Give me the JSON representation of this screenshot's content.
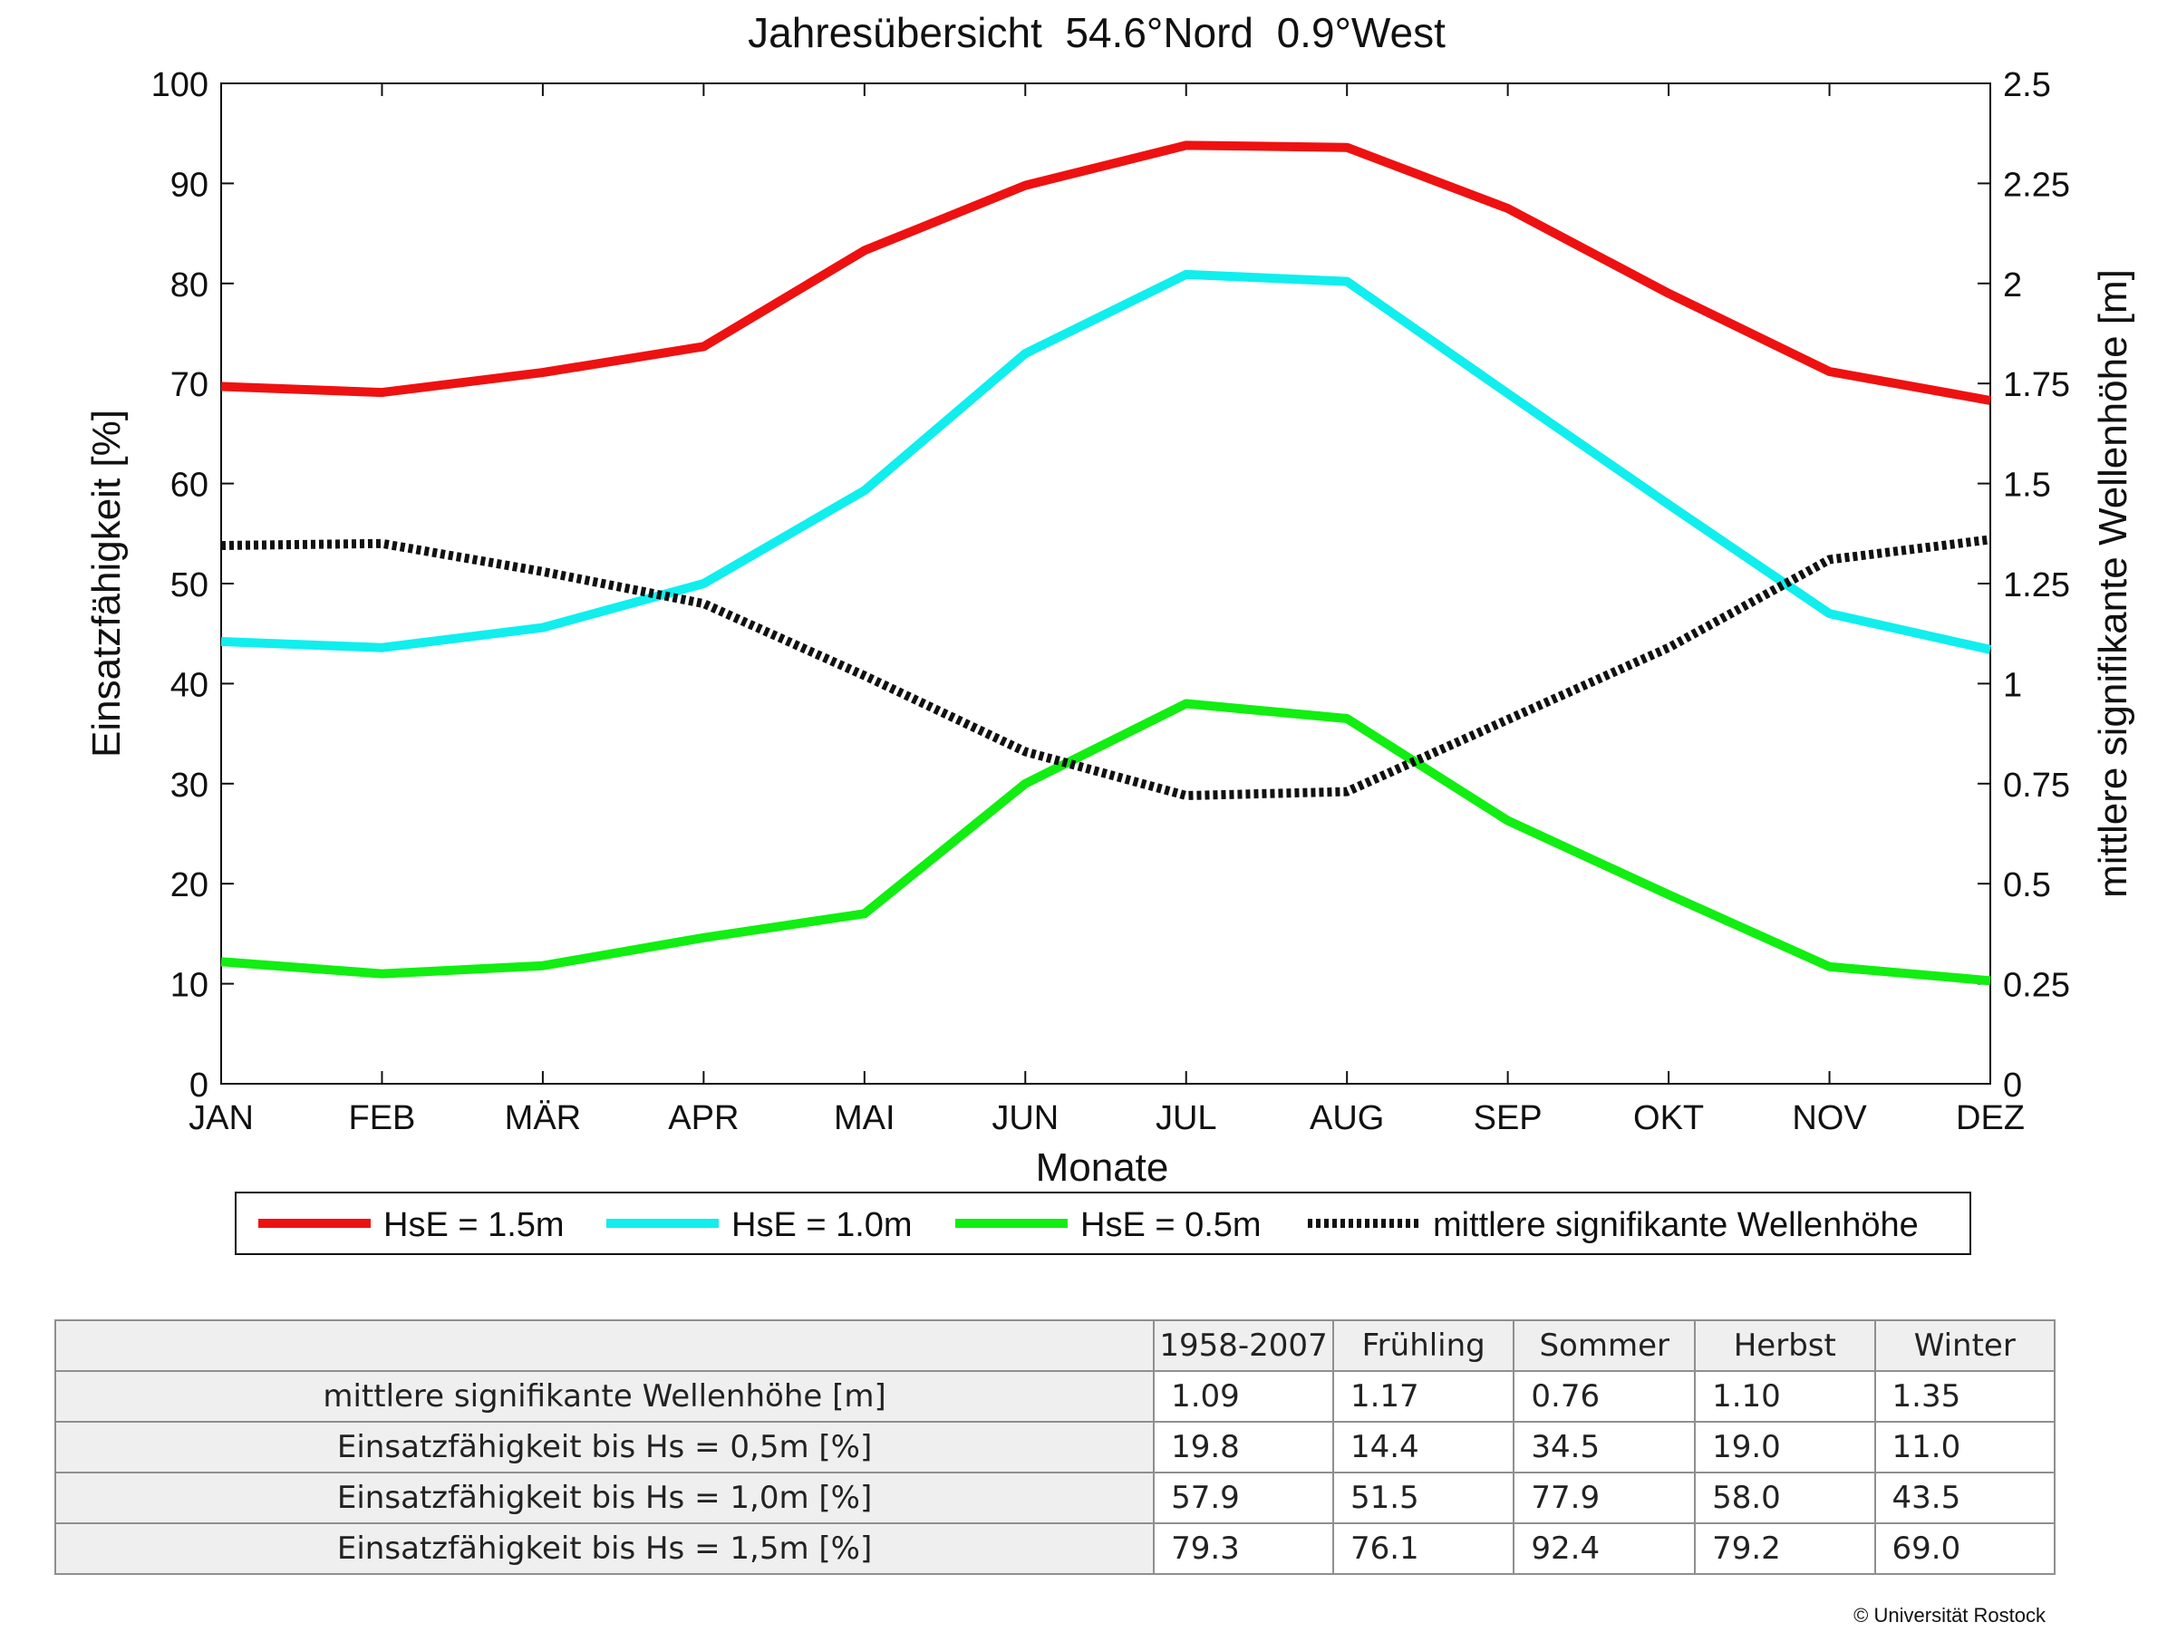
{
  "chart_data": {
    "type": "line",
    "title": "Jahresübersicht  54.6°Nord  0.9°West",
    "xlabel": "Monate",
    "ylabel": "Einsatzfähigkeit [%]",
    "ylabel_right": "mittlere signifikante Wellenhöhe [m]",
    "categories": [
      "JAN",
      "FEB",
      "MÄR",
      "APR",
      "MAI",
      "JUN",
      "JUL",
      "AUG",
      "SEP",
      "OKT",
      "NOV",
      "DEZ"
    ],
    "ylim": [
      0,
      100
    ],
    "yticks": [
      "0",
      "10",
      "20",
      "30",
      "40",
      "50",
      "60",
      "70",
      "80",
      "90",
      "100"
    ],
    "ylim_right": [
      0,
      2.5
    ],
    "yticks_right": [
      "0",
      "0.25",
      "0.5",
      "0.75",
      "1",
      "1.25",
      "1.5",
      "1.75",
      "2",
      "2.25",
      "2.5"
    ],
    "grid": false,
    "legend_position": "bottom",
    "series": [
      {
        "name": "HsE = 1.5m",
        "axis": "left",
        "color": "#ee1111",
        "style": "solid",
        "values": [
          69.7,
          69.1,
          71.1,
          73.7,
          83.3,
          89.8,
          93.8,
          93.6,
          87.5,
          79.0,
          71.2,
          68.3
        ]
      },
      {
        "name": "HsE = 1.0m",
        "axis": "left",
        "color": "#11eeee",
        "style": "solid",
        "values": [
          44.2,
          43.6,
          45.6,
          50.0,
          59.3,
          73.0,
          80.9,
          80.2,
          69.0,
          57.9,
          47.0,
          43.4
        ]
      },
      {
        "name": "HsE = 0.5m",
        "axis": "left",
        "color": "#11ee11",
        "style": "solid",
        "values": [
          12.2,
          11.0,
          11.8,
          14.6,
          17.0,
          30.0,
          38.0,
          36.5,
          26.3,
          18.9,
          11.7,
          10.3
        ]
      },
      {
        "name": "mittlere signifikante Wellenhöhe",
        "axis": "right",
        "color": "#111111",
        "style": "dotted",
        "values": [
          1.345,
          1.35,
          1.28,
          1.2,
          1.02,
          0.83,
          0.72,
          0.73,
          0.91,
          1.09,
          1.31,
          1.36
        ]
      }
    ]
  },
  "table": {
    "columns": [
      "1958-2007",
      "Frühling",
      "Sommer",
      "Herbst",
      "Winter"
    ],
    "rows": [
      {
        "label": "mittlere signifikante Wellenhöhe [m]",
        "values": [
          "1.09",
          "1.17",
          "0.76",
          "1.10",
          "1.35"
        ]
      },
      {
        "label": "Einsatzfähigkeit bis Hs = 0,5m [%]",
        "values": [
          "19.8",
          "14.4",
          "34.5",
          "19.0",
          "11.0"
        ]
      },
      {
        "label": "Einsatzfähigkeit bis Hs = 1,0m [%]",
        "values": [
          "57.9",
          "51.5",
          "77.9",
          "58.0",
          "43.5"
        ]
      },
      {
        "label": "Einsatzfähigkeit bis Hs = 1,5m [%]",
        "values": [
          "79.3",
          "76.1",
          "92.4",
          "79.2",
          "69.0"
        ]
      }
    ]
  },
  "copyright": "© Universität Rostock"
}
